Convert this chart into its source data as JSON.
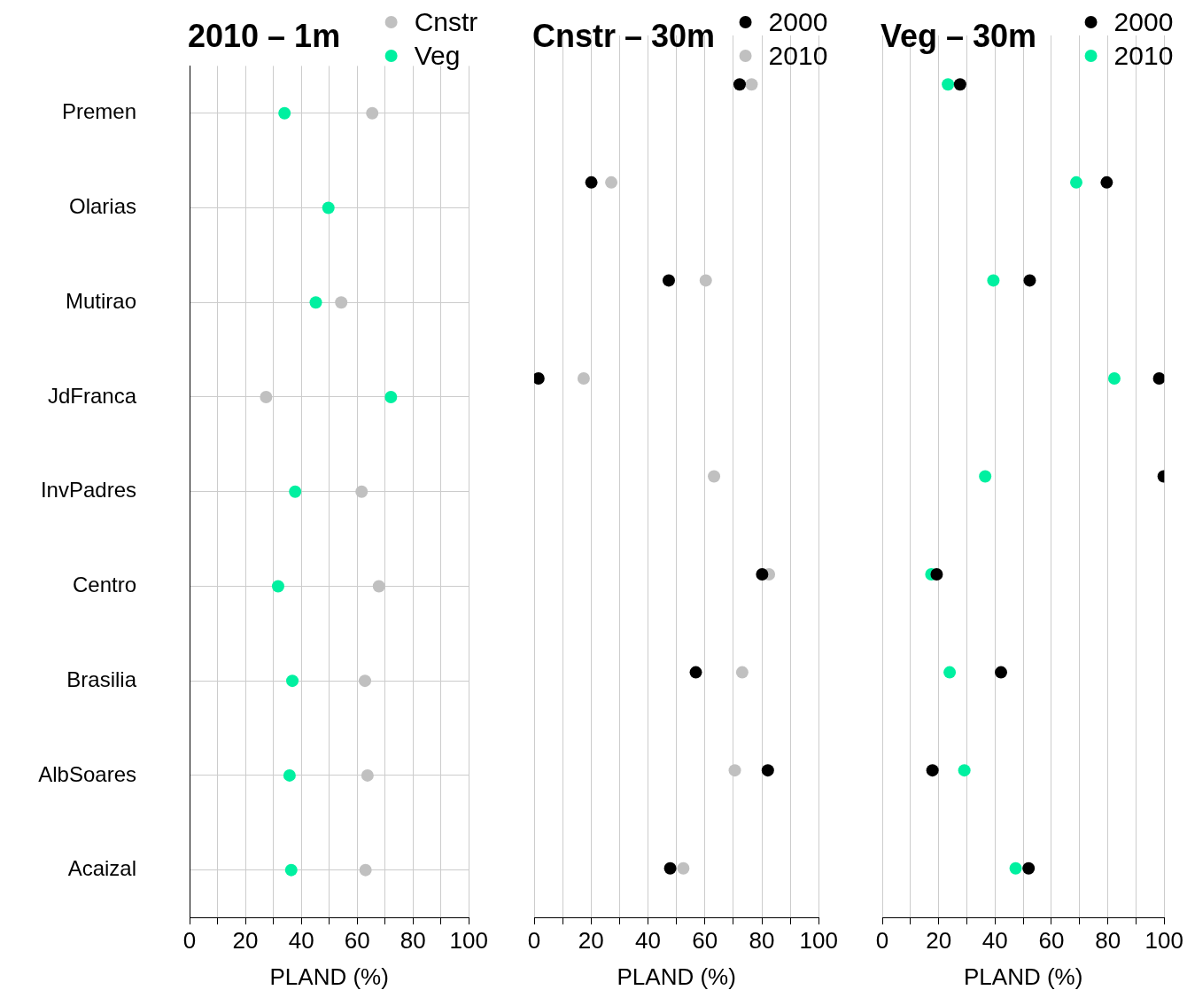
{
  "chart_data": [
    {
      "type": "scatter",
      "orientation": "horizontal",
      "title": "2010 – 1m",
      "xlabel": "PLAND (%)",
      "categories": [
        "Premen",
        "Olarias",
        "Mutirao",
        "JdFranca",
        "InvPadres",
        "Centro",
        "Brasilia",
        "AlbSoares",
        "Acaizal"
      ],
      "series": [
        {
          "name": "Cnstr",
          "color": "#c0c0c0",
          "values": [
            65.4,
            null,
            54.3,
            27.4,
            61.6,
            67.8,
            62.8,
            63.7,
            63.0
          ]
        },
        {
          "name": "Veg",
          "color": "#00f0a0",
          "values": [
            34,
            49.7,
            45.2,
            72.1,
            37.8,
            31.7,
            36.8,
            35.8,
            36.4
          ]
        }
      ],
      "xlim": [
        0,
        100
      ],
      "xticks": [
        0,
        {
          "value": 10,
          "label": null
        },
        20,
        {
          "value": 30,
          "label": null
        },
        40,
        {
          "value": 50,
          "label": null
        },
        60,
        {
          "value": 70,
          "label": null
        },
        80,
        {
          "value": 90,
          "label": null
        },
        100
      ],
      "grid": true,
      "legend": "top right",
      "marker": "circle"
    },
    {
      "type": "scatter",
      "orientation": "horizontal",
      "title": "Cnstr – 30m",
      "xlabel": "PLAND (%)",
      "series": [
        {
          "name": "2000",
          "color": "#000000",
          "values": [
            72.2,
            20.1,
            47.3,
            1.5,
            null,
            80.1,
            56.8,
            82.1,
            47.8
          ]
        },
        {
          "name": "2010",
          "color": "#c0c0c0",
          "values": [
            76.4,
            27.1,
            60.3,
            17.4,
            63.2,
            82.5,
            73.1,
            70.5,
            52.4
          ]
        }
      ],
      "xlim": [
        0,
        100
      ],
      "xticks": [
        0,
        {
          "value": 10,
          "label": null
        },
        20,
        {
          "value": 30,
          "label": null
        },
        40,
        {
          "value": 50,
          "label": null
        },
        60,
        {
          "value": 70,
          "label": null
        },
        80,
        {
          "value": 90,
          "label": null
        },
        100
      ],
      "grid": true,
      "legend": "top right",
      "marker": "circle",
      "tick_labels": "x"
    },
    {
      "type": "scatter",
      "orientation": "horizontal",
      "title": "Veg – 30m",
      "xlabel": "PLAND (%)",
      "series": [
        {
          "name": "2000",
          "color": "#000000",
          "values": [
            27.6,
            79.6,
            52.3,
            98.2,
            99.8,
            19.3,
            42.1,
            17.8,
            51.9
          ]
        },
        {
          "name": "2010",
          "color": "#00f0a0",
          "values": [
            23.3,
            68.8,
            39.4,
            82.3,
            36.5,
            17.4,
            23.9,
            29.1,
            47.3
          ]
        }
      ],
      "xlim": [
        0,
        100
      ],
      "xticks": [
        0,
        {
          "value": 10,
          "label": null
        },
        20,
        {
          "value": 30,
          "label": null
        },
        40,
        {
          "value": 50,
          "label": null
        },
        60,
        {
          "value": 70,
          "label": null
        },
        80,
        {
          "value": 90,
          "label": null
        },
        100
      ],
      "grid": true,
      "legend": "top right",
      "marker": "circle",
      "tick_labels": "x"
    }
  ]
}
